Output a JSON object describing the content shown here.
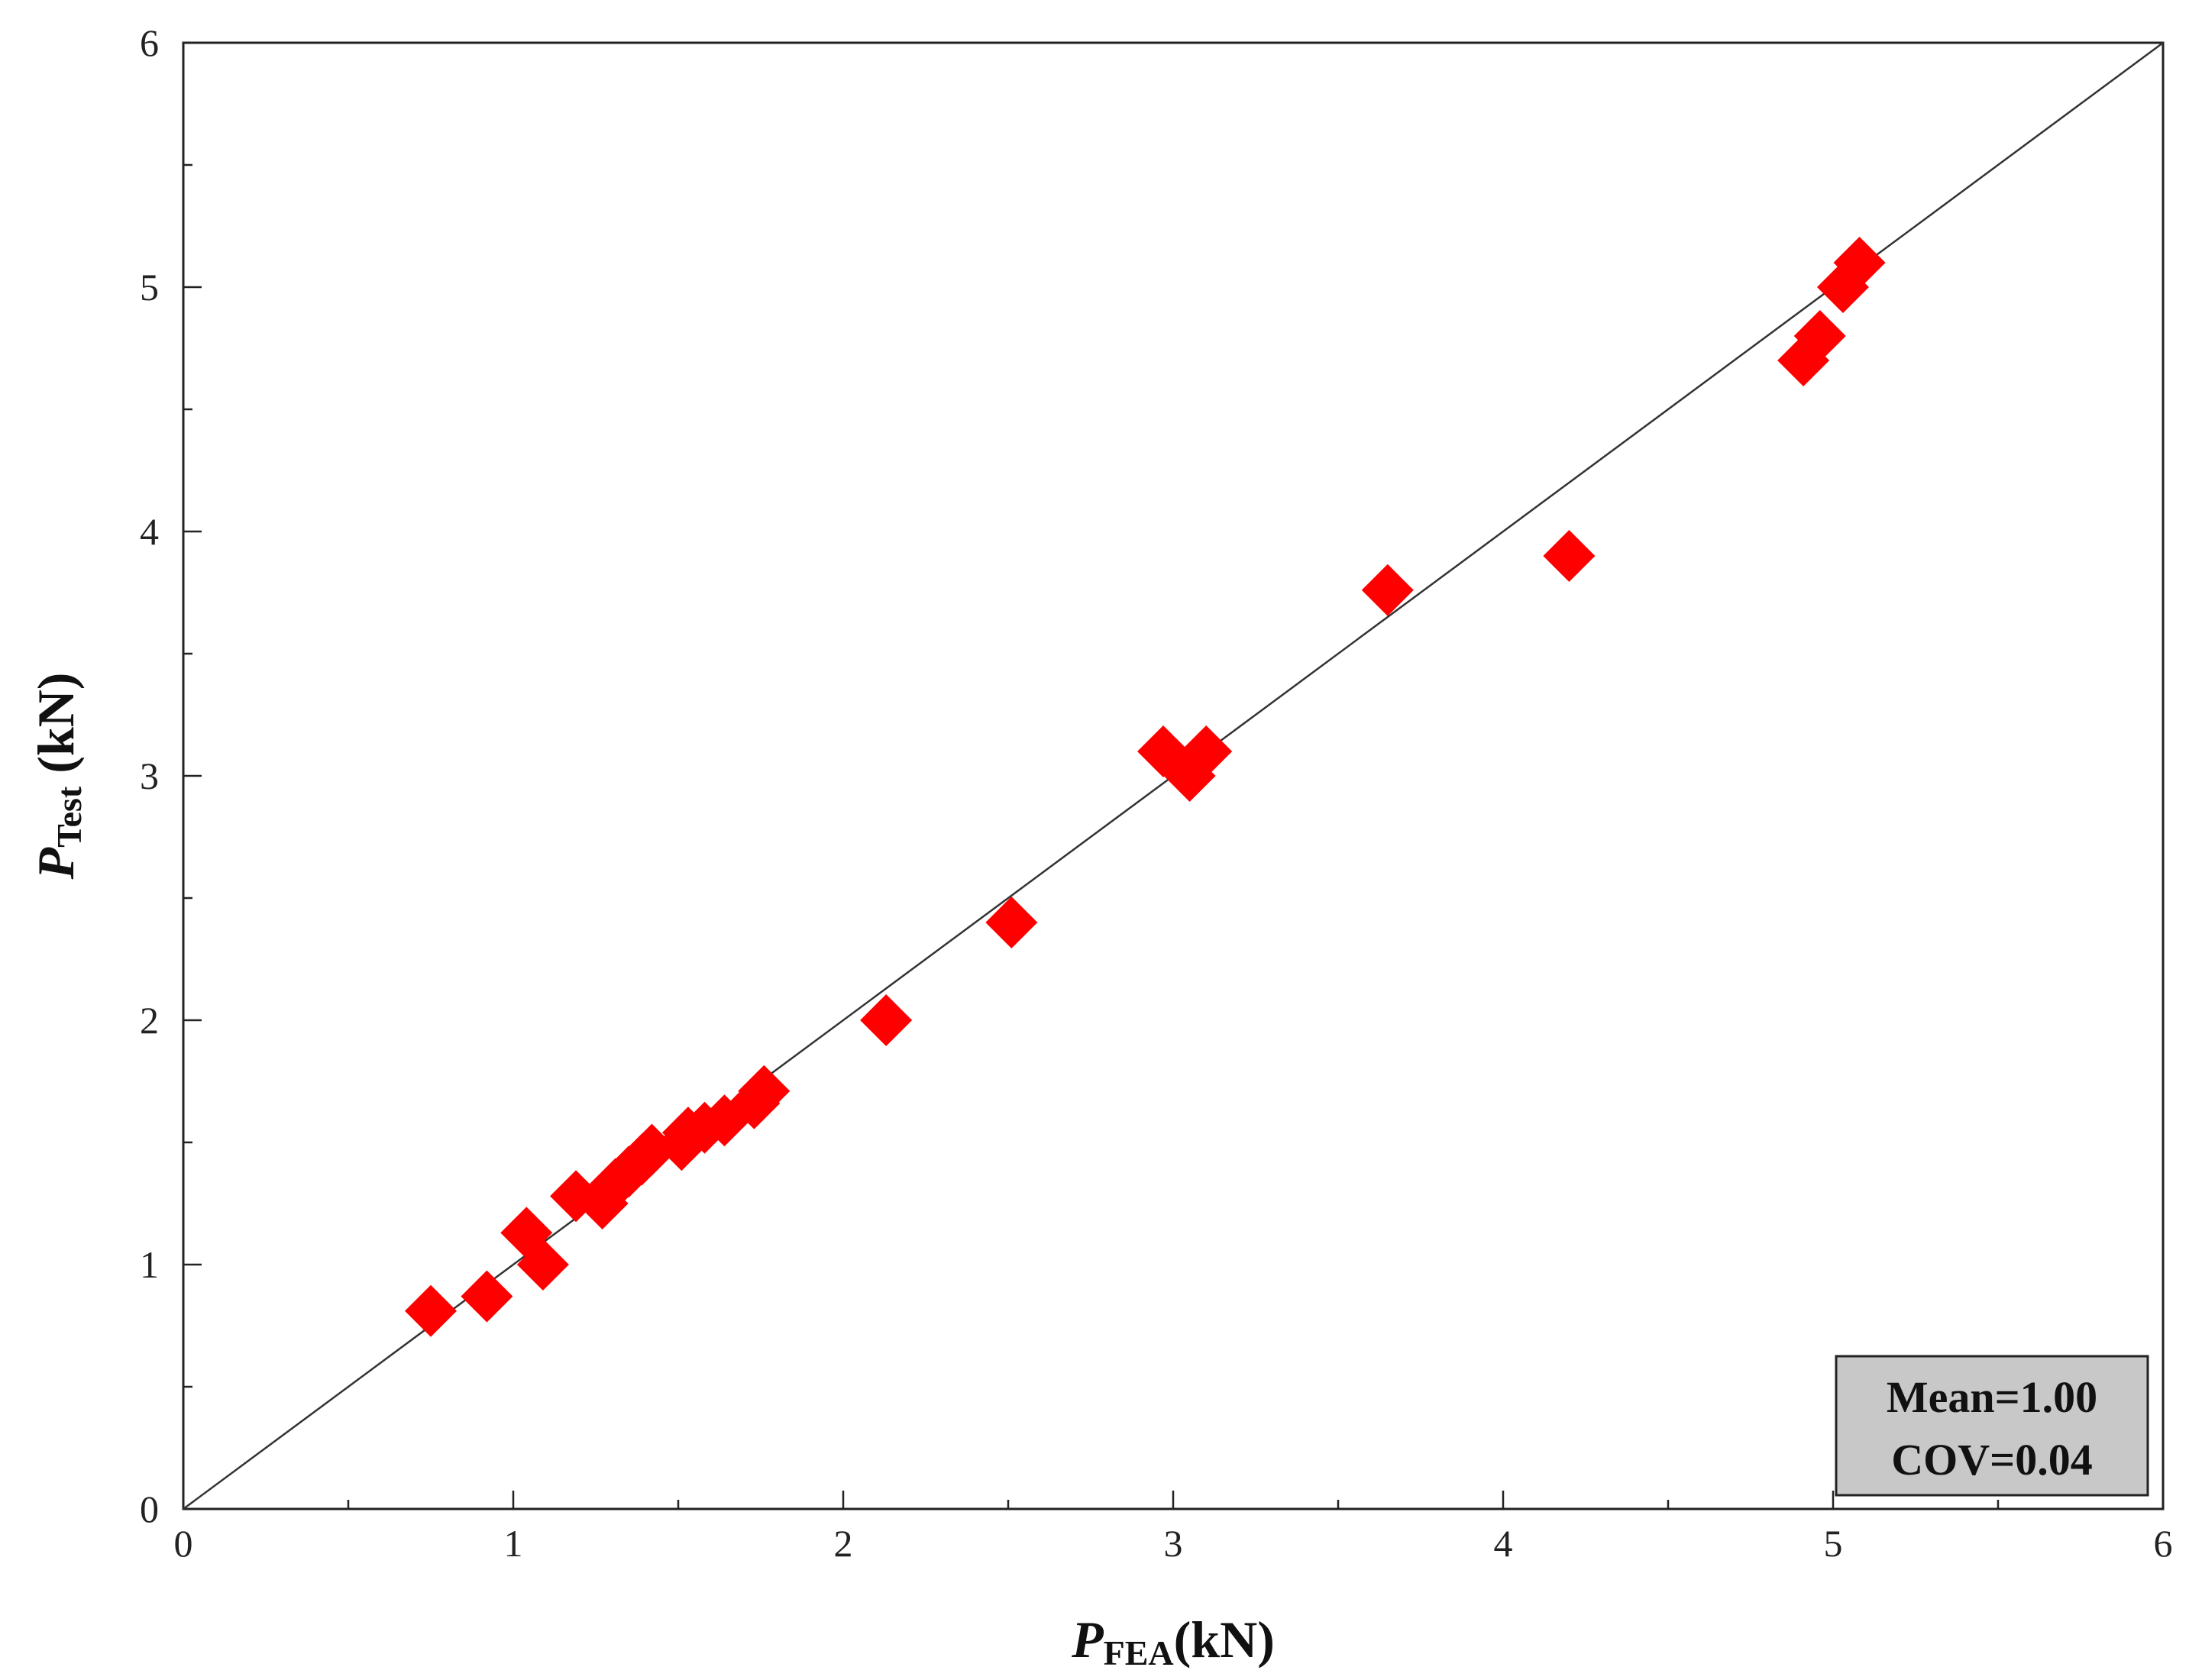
{
  "chart_data": {
    "type": "scatter",
    "title": "",
    "xlabel": {
      "main": "P",
      "sub": "FEA",
      "unit": "(kN)"
    },
    "ylabel": {
      "main": "P",
      "sub": "Test",
      "unit": " (kN)"
    },
    "xlim": [
      0,
      6
    ],
    "ylim": [
      0,
      6
    ],
    "xticks": [
      "0",
      "1",
      "2",
      "3",
      "4",
      "5",
      "6"
    ],
    "yticks": [
      "0",
      "1",
      "2",
      "3",
      "4",
      "5",
      "6"
    ],
    "grid": false,
    "marker": "diamond",
    "marker_color": "#ff0000",
    "reference_line": {
      "x": [
        0,
        6
      ],
      "y": [
        0,
        6
      ],
      "color": "#333333"
    },
    "points": [
      {
        "x": 0.75,
        "y": 0.81
      },
      {
        "x": 0.92,
        "y": 0.87
      },
      {
        "x": 1.04,
        "y": 1.13
      },
      {
        "x": 1.09,
        "y": 1.0
      },
      {
        "x": 1.19,
        "y": 1.28
      },
      {
        "x": 1.27,
        "y": 1.25
      },
      {
        "x": 1.31,
        "y": 1.33
      },
      {
        "x": 1.35,
        "y": 1.38
      },
      {
        "x": 1.39,
        "y": 1.43
      },
      {
        "x": 1.42,
        "y": 1.47
      },
      {
        "x": 1.51,
        "y": 1.49
      },
      {
        "x": 1.53,
        "y": 1.54
      },
      {
        "x": 1.58,
        "y": 1.56
      },
      {
        "x": 1.64,
        "y": 1.59
      },
      {
        "x": 1.73,
        "y": 1.66
      },
      {
        "x": 1.76,
        "y": 1.71
      },
      {
        "x": 2.13,
        "y": 2.0
      },
      {
        "x": 2.51,
        "y": 2.4
      },
      {
        "x": 2.97,
        "y": 3.1
      },
      {
        "x": 3.05,
        "y": 3.0
      },
      {
        "x": 3.1,
        "y": 3.1
      },
      {
        "x": 3.65,
        "y": 3.76
      },
      {
        "x": 4.2,
        "y": 3.9
      },
      {
        "x": 4.91,
        "y": 4.7
      },
      {
        "x": 4.96,
        "y": 4.8
      },
      {
        "x": 5.03,
        "y": 5.0
      },
      {
        "x": 5.08,
        "y": 5.1
      }
    ],
    "stats_box": {
      "mean": "Mean=1.00",
      "cov": "COV=0.04",
      "background": "#c8c8c8"
    }
  }
}
